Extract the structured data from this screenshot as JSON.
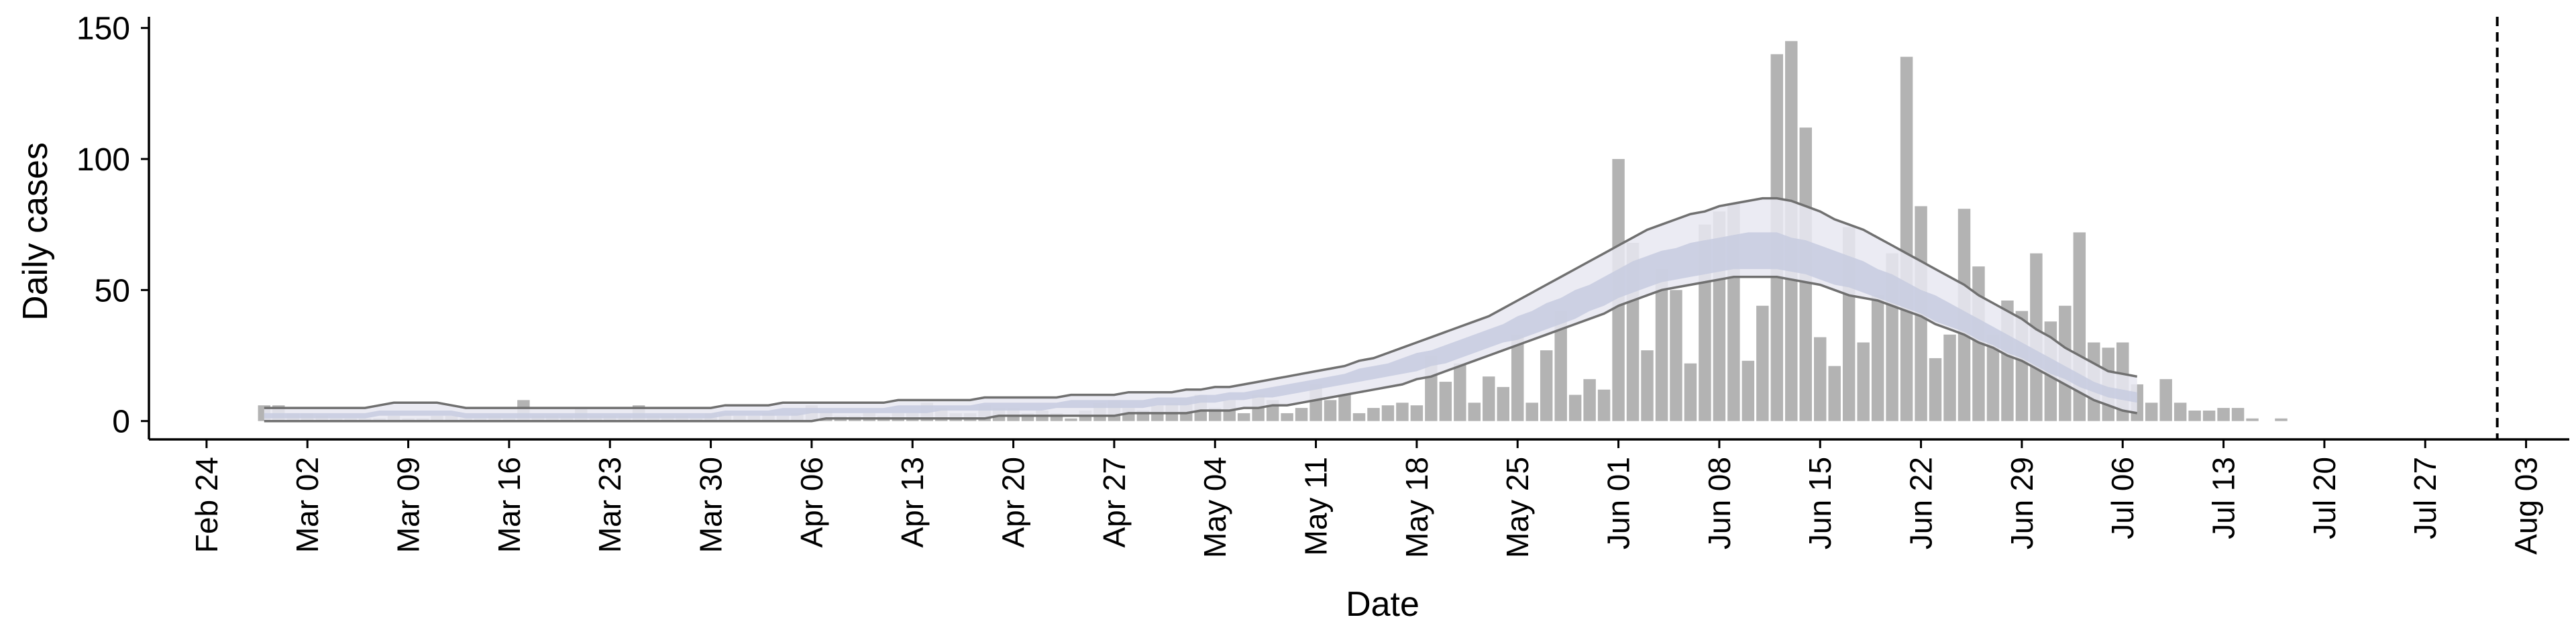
{
  "chart_data": {
    "type": "bar",
    "title": "",
    "xlabel": "Date",
    "ylabel": "Daily cases",
    "ylim": [
      -7,
      153
    ],
    "xlim": [
      "2020-02-20",
      "2020-08-06"
    ],
    "y_ticks": [
      0,
      50,
      100,
      150
    ],
    "x_ticks": [
      {
        "date": "2020-02-24",
        "label": "Feb 24"
      },
      {
        "date": "2020-03-02",
        "label": "Mar 02"
      },
      {
        "date": "2020-03-09",
        "label": "Mar 09"
      },
      {
        "date": "2020-03-16",
        "label": "Mar 16"
      },
      {
        "date": "2020-03-23",
        "label": "Mar 23"
      },
      {
        "date": "2020-03-30",
        "label": "Mar 30"
      },
      {
        "date": "2020-04-06",
        "label": "Apr 06"
      },
      {
        "date": "2020-04-13",
        "label": "Apr 13"
      },
      {
        "date": "2020-04-20",
        "label": "Apr 20"
      },
      {
        "date": "2020-04-27",
        "label": "Apr 27"
      },
      {
        "date": "2020-05-04",
        "label": "May 04"
      },
      {
        "date": "2020-05-11",
        "label": "May 11"
      },
      {
        "date": "2020-05-18",
        "label": "May 18"
      },
      {
        "date": "2020-05-25",
        "label": "May 25"
      },
      {
        "date": "2020-06-01",
        "label": "Jun 01"
      },
      {
        "date": "2020-06-08",
        "label": "Jun 08"
      },
      {
        "date": "2020-06-15",
        "label": "Jun 15"
      },
      {
        "date": "2020-06-22",
        "label": "Jun 22"
      },
      {
        "date": "2020-06-29",
        "label": "Jun 29"
      },
      {
        "date": "2020-07-06",
        "label": "Jul 06"
      },
      {
        "date": "2020-07-13",
        "label": "Jul 13"
      },
      {
        "date": "2020-07-20",
        "label": "Jul 20"
      },
      {
        "date": "2020-07-27",
        "label": "Jul 27"
      },
      {
        "date": "2020-08-03",
        "label": "Aug 03"
      }
    ],
    "grid": false,
    "vline_date": "2020-08-01",
    "colors": {
      "bars": "#b3b3b3",
      "band_outer": "#e7e8f1",
      "band_inner": "#c7cbdf",
      "bound_lines": "#707070",
      "axes": "#000000"
    },
    "bars": {
      "start_date": "2020-02-28",
      "values": [
        6,
        6,
        3,
        3,
        2,
        1,
        1,
        1,
        1,
        2,
        1,
        1,
        2,
        2,
        1,
        1,
        2,
        1,
        8,
        2,
        2,
        2,
        5,
        2,
        2,
        2,
        6,
        2,
        2,
        2,
        1,
        3,
        3,
        2,
        2,
        3,
        2,
        3,
        6,
        4,
        2,
        2,
        3,
        2,
        3,
        3,
        7,
        5,
        3,
        3,
        6,
        5,
        5,
        3,
        4,
        3,
        1,
        4,
        7,
        8,
        5,
        4,
        6,
        7,
        9,
        10,
        5,
        8,
        3,
        10,
        8,
        3,
        5,
        14,
        8,
        10,
        3,
        5,
        6,
        7,
        6,
        25,
        15,
        22,
        7,
        17,
        13,
        33,
        7,
        27,
        42,
        10,
        16,
        12,
        100,
        68,
        27,
        58,
        50,
        22,
        75,
        80,
        83,
        23,
        44,
        140,
        145,
        112,
        32,
        21,
        74,
        30,
        48,
        64,
        139,
        82,
        24,
        33,
        81,
        59,
        33,
        46,
        42,
        64,
        38,
        44,
        72,
        30,
        28,
        30,
        14,
        7,
        16,
        7,
        4,
        4,
        5,
        5,
        1,
        0,
        1
      ],
      "note_zero_days": "none"
    },
    "band": {
      "start_date": "2020-02-28",
      "upper_outer": [
        5,
        5,
        5,
        5,
        5,
        5,
        5,
        5,
        6,
        7,
        7,
        7,
        7,
        6,
        5,
        5,
        5,
        5,
        5,
        5,
        5,
        5,
        5,
        5,
        5,
        5,
        5,
        5,
        5,
        5,
        5,
        5,
        6,
        6,
        6,
        6,
        7,
        7,
        7,
        7,
        7,
        7,
        7,
        7,
        8,
        8,
        8,
        8,
        8,
        8,
        9,
        9,
        9,
        9,
        9,
        9,
        10,
        10,
        10,
        10,
        11,
        11,
        11,
        11,
        12,
        12,
        13,
        13,
        14,
        15,
        16,
        17,
        18,
        19,
        20,
        21,
        23,
        24,
        26,
        28,
        30,
        32,
        34,
        36,
        38,
        40,
        43,
        46,
        49,
        52,
        55,
        58,
        61,
        64,
        67,
        70,
        73,
        75,
        77,
        79,
        80,
        82,
        83,
        84,
        85,
        85,
        84,
        82,
        80,
        77,
        75,
        73,
        70,
        67,
        64,
        61,
        58,
        55,
        52,
        48,
        45,
        42,
        39,
        35,
        32,
        28,
        25,
        22,
        19,
        18,
        17
      ],
      "upper_inner": [
        3,
        3,
        3,
        3,
        3,
        3,
        3,
        3,
        4,
        4,
        4,
        4,
        4,
        4,
        3,
        3,
        3,
        3,
        3,
        3,
        3,
        3,
        3,
        3,
        3,
        3,
        3,
        3,
        3,
        3,
        3,
        3,
        4,
        4,
        4,
        4,
        5,
        5,
        5,
        5,
        5,
        5,
        5,
        5,
        6,
        6,
        6,
        6,
        6,
        6,
        7,
        7,
        7,
        7,
        7,
        7,
        8,
        8,
        8,
        8,
        8,
        8,
        9,
        9,
        9,
        10,
        10,
        11,
        11,
        12,
        13,
        14,
        15,
        16,
        17,
        18,
        20,
        21,
        22,
        24,
        26,
        27,
        29,
        31,
        33,
        35,
        37,
        40,
        42,
        45,
        47,
        50,
        52,
        55,
        58,
        61,
        63,
        65,
        66,
        68,
        69,
        70,
        71,
        72,
        72,
        72,
        70,
        69,
        67,
        65,
        63,
        61,
        58,
        56,
        53,
        50,
        48,
        45,
        42,
        39,
        36,
        33,
        30,
        27,
        24,
        21,
        18,
        15,
        13,
        12,
        11
      ],
      "median": [
        2,
        2,
        2,
        2,
        2,
        2,
        2,
        2,
        3,
        3,
        3,
        3,
        3,
        3,
        2,
        2,
        2,
        2,
        2,
        2,
        2,
        2,
        2,
        2,
        2,
        2,
        2,
        2,
        2,
        2,
        2,
        2,
        3,
        3,
        3,
        3,
        3,
        3,
        4,
        4,
        4,
        4,
        4,
        4,
        4,
        4,
        5,
        5,
        5,
        5,
        5,
        5,
        5,
        6,
        6,
        6,
        6,
        6,
        6,
        7,
        7,
        7,
        7,
        8,
        8,
        8,
        9,
        9,
        10,
        10,
        11,
        12,
        13,
        14,
        15,
        16,
        17,
        18,
        19,
        21,
        22,
        24,
        25,
        27,
        29,
        31,
        33,
        35,
        37,
        40,
        42,
        44,
        47,
        50,
        52,
        55,
        57,
        59,
        60,
        62,
        63,
        64,
        64,
        65,
        65,
        65,
        64,
        62,
        61,
        59,
        57,
        55,
        53,
        50,
        48,
        46,
        43,
        41,
        38,
        35,
        33,
        30,
        27,
        24,
        21,
        18,
        16,
        13,
        11,
        10,
        9
      ],
      "lower_inner": [
        1,
        1,
        1,
        1,
        1,
        1,
        1,
        1,
        2,
        2,
        2,
        2,
        2,
        2,
        1,
        1,
        1,
        1,
        1,
        1,
        1,
        1,
        1,
        1,
        1,
        1,
        1,
        1,
        1,
        1,
        1,
        1,
        2,
        2,
        2,
        2,
        2,
        2,
        3,
        3,
        3,
        3,
        3,
        3,
        3,
        3,
        3,
        4,
        4,
        4,
        4,
        4,
        4,
        4,
        4,
        5,
        5,
        5,
        5,
        5,
        5,
        5,
        6,
        6,
        6,
        7,
        7,
        8,
        8,
        9,
        9,
        10,
        11,
        12,
        13,
        14,
        15,
        16,
        17,
        18,
        19,
        21,
        22,
        24,
        26,
        28,
        30,
        31,
        33,
        35,
        37,
        39,
        42,
        44,
        47,
        49,
        51,
        53,
        54,
        55,
        56,
        57,
        58,
        58,
        58,
        58,
        57,
        56,
        54,
        52,
        51,
        49,
        47,
        45,
        43,
        41,
        38,
        36,
        34,
        31,
        29,
        26,
        24,
        21,
        18,
        16,
        13,
        11,
        9,
        8,
        7
      ],
      "lower_outer": [
        0,
        0,
        0,
        0,
        0,
        0,
        0,
        0,
        0,
        0,
        0,
        0,
        0,
        0,
        0,
        0,
        0,
        0,
        0,
        0,
        0,
        0,
        0,
        0,
        0,
        0,
        0,
        0,
        0,
        0,
        0,
        0,
        0,
        0,
        0,
        0,
        0,
        0,
        0,
        1,
        1,
        1,
        1,
        1,
        1,
        1,
        1,
        1,
        1,
        1,
        1,
        2,
        2,
        2,
        2,
        2,
        2,
        2,
        2,
        2,
        3,
        3,
        3,
        3,
        3,
        4,
        4,
        4,
        5,
        5,
        6,
        6,
        7,
        8,
        9,
        10,
        11,
        12,
        13,
        14,
        16,
        17,
        19,
        21,
        23,
        25,
        27,
        29,
        31,
        33,
        35,
        37,
        39,
        41,
        44,
        46,
        48,
        50,
        51,
        52,
        53,
        54,
        55,
        55,
        55,
        55,
        54,
        53,
        52,
        50,
        48,
        47,
        46,
        44,
        42,
        40,
        37,
        35,
        33,
        30,
        28,
        25,
        23,
        20,
        17,
        14,
        11,
        8,
        6,
        4,
        3
      ]
    }
  }
}
